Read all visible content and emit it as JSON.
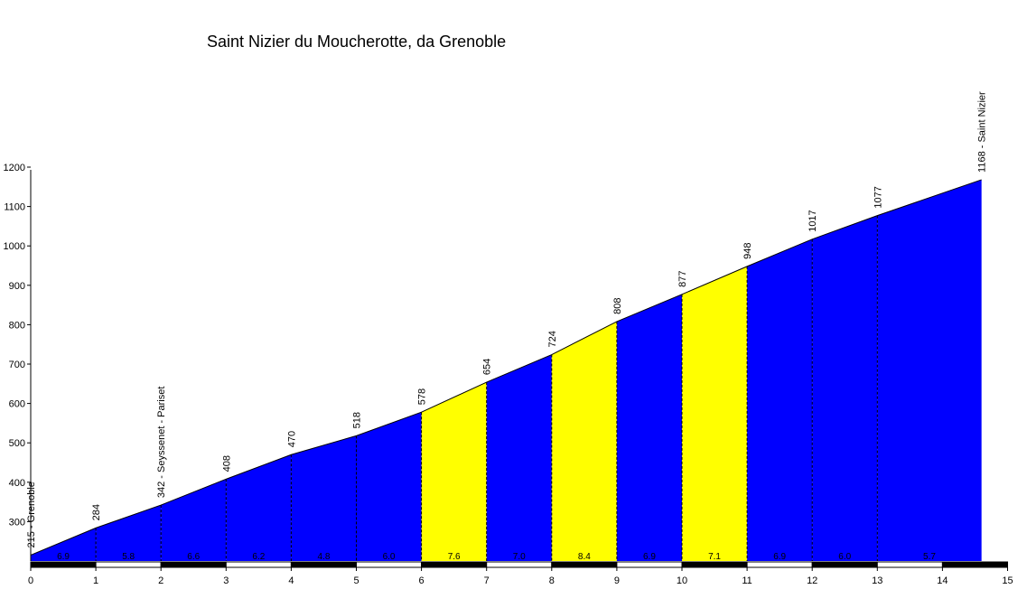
{
  "chart_data": {
    "type": "area",
    "title": "Saint Nizier du Moucherotte, da Grenoble",
    "x_ticks": [
      "0",
      "1",
      "2",
      "3",
      "4",
      "5",
      "6",
      "7",
      "8",
      "9",
      "10",
      "11",
      "12",
      "13",
      "14",
      "15"
    ],
    "y_ticks": [
      "300",
      "400",
      "500",
      "600",
      "700",
      "800",
      "900",
      "1000",
      "1100",
      "1200"
    ],
    "xlim": [
      0,
      15
    ],
    "ylim": [
      200,
      1200
    ],
    "points": [
      {
        "x": 0,
        "y": 215,
        "label": "215 - Grenoble"
      },
      {
        "x": 1,
        "y": 284,
        "label": "284"
      },
      {
        "x": 2,
        "y": 342,
        "label": "342 - Seyssenet - Pariset"
      },
      {
        "x": 3,
        "y": 408,
        "label": "408"
      },
      {
        "x": 4,
        "y": 470,
        "label": "470"
      },
      {
        "x": 5,
        "y": 518,
        "label": "518"
      },
      {
        "x": 6,
        "y": 578,
        "label": "578"
      },
      {
        "x": 7,
        "y": 654,
        "label": "654"
      },
      {
        "x": 8,
        "y": 724,
        "label": "724"
      },
      {
        "x": 9,
        "y": 808,
        "label": "808"
      },
      {
        "x": 10,
        "y": 877,
        "label": "877"
      },
      {
        "x": 11,
        "y": 948,
        "label": "948"
      },
      {
        "x": 12,
        "y": 1017,
        "label": "1017"
      },
      {
        "x": 13,
        "y": 1077,
        "label": "1077"
      },
      {
        "x": 14.6,
        "y": 1168,
        "label": "1168 - Saint Nizier"
      }
    ],
    "segments": [
      {
        "grade": "6.9",
        "color": "#0000FF"
      },
      {
        "grade": "5.8",
        "color": "#0000FF"
      },
      {
        "grade": "6.6",
        "color": "#0000FF"
      },
      {
        "grade": "6.2",
        "color": "#0000FF"
      },
      {
        "grade": "4.8",
        "color": "#0000FF"
      },
      {
        "grade": "6.0",
        "color": "#0000FF"
      },
      {
        "grade": "7.6",
        "color": "#FFFF00"
      },
      {
        "grade": "7.0",
        "color": "#0000FF"
      },
      {
        "grade": "8.4",
        "color": "#FFFF00"
      },
      {
        "grade": "6.9",
        "color": "#0000FF"
      },
      {
        "grade": "7.1",
        "color": "#FFFF00"
      },
      {
        "grade": "6.9",
        "color": "#0000FF"
      },
      {
        "grade": "6.0",
        "color": "#0000FF"
      },
      {
        "grade": "5.7",
        "color": "#0000FF"
      }
    ],
    "grid": false
  }
}
